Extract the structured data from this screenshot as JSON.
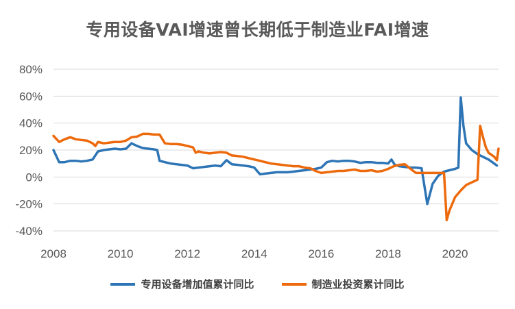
{
  "chart_data": {
    "type": "line",
    "title": "专用设备VAI增速曾长期低于制造业FAI增速",
    "xlabel": "",
    "ylabel": "",
    "xlim": [
      2008,
      2021.3
    ],
    "ylim": [
      -40,
      80
    ],
    "y_ticks": [
      "-40%",
      "-20%",
      "0%",
      "20%",
      "40%",
      "60%",
      "80%"
    ],
    "y_tick_values": [
      -40,
      -20,
      0,
      20,
      40,
      60,
      80
    ],
    "x_ticks": [
      "2008",
      "2010",
      "2012",
      "2014",
      "2016",
      "2018",
      "2020"
    ],
    "x_tick_values": [
      2008,
      2010,
      2012,
      2014,
      2016,
      2018,
      2020
    ],
    "grid": true,
    "legend_position": "bottom",
    "series": [
      {
        "name": "专用设备增加值累计同比",
        "color": "#2E75B6",
        "points": [
          [
            2008.0,
            20
          ],
          [
            2008.17,
            11
          ],
          [
            2008.33,
            11
          ],
          [
            2008.5,
            12
          ],
          [
            2008.67,
            12
          ],
          [
            2008.83,
            11.5
          ],
          [
            2009.0,
            12
          ],
          [
            2009.17,
            13
          ],
          [
            2009.33,
            19
          ],
          [
            2009.5,
            20
          ],
          [
            2009.67,
            20.5
          ],
          [
            2009.83,
            21
          ],
          [
            2010.0,
            20.5
          ],
          [
            2010.17,
            21
          ],
          [
            2010.33,
            25
          ],
          [
            2010.5,
            23
          ],
          [
            2010.67,
            21.5
          ],
          [
            2010.83,
            21
          ],
          [
            2011.0,
            20.5
          ],
          [
            2011.1,
            20
          ],
          [
            2011.17,
            12
          ],
          [
            2011.33,
            11
          ],
          [
            2011.5,
            10
          ],
          [
            2011.67,
            9.5
          ],
          [
            2011.83,
            9
          ],
          [
            2012.0,
            8.5
          ],
          [
            2012.17,
            6.5
          ],
          [
            2012.33,
            7
          ],
          [
            2012.5,
            7.5
          ],
          [
            2012.67,
            8
          ],
          [
            2012.83,
            8.5
          ],
          [
            2013.0,
            8
          ],
          [
            2013.17,
            12.5
          ],
          [
            2013.33,
            9.5
          ],
          [
            2013.5,
            9
          ],
          [
            2013.67,
            8.5
          ],
          [
            2013.83,
            8
          ],
          [
            2014.0,
            7
          ],
          [
            2014.17,
            2
          ],
          [
            2014.33,
            2.5
          ],
          [
            2014.5,
            3
          ],
          [
            2014.67,
            3.5
          ],
          [
            2014.83,
            3.5
          ],
          [
            2015.0,
            3.5
          ],
          [
            2015.17,
            4
          ],
          [
            2015.33,
            4.5
          ],
          [
            2015.5,
            5
          ],
          [
            2015.67,
            5.5
          ],
          [
            2015.83,
            6
          ],
          [
            2016.0,
            7
          ],
          [
            2016.17,
            11
          ],
          [
            2016.33,
            12
          ],
          [
            2016.5,
            11.5
          ],
          [
            2016.67,
            12
          ],
          [
            2016.83,
            12
          ],
          [
            2017.0,
            11.5
          ],
          [
            2017.17,
            10.5
          ],
          [
            2017.33,
            11
          ],
          [
            2017.5,
            11
          ],
          [
            2017.67,
            10.5
          ],
          [
            2017.83,
            10.5
          ],
          [
            2018.0,
            10
          ],
          [
            2018.1,
            13
          ],
          [
            2018.2,
            9
          ],
          [
            2018.33,
            8
          ],
          [
            2018.5,
            7.5
          ],
          [
            2018.67,
            7
          ],
          [
            2018.83,
            7
          ],
          [
            2019.0,
            6.5
          ],
          [
            2019.17,
            -20
          ],
          [
            2019.33,
            -5
          ],
          [
            2019.5,
            1
          ],
          [
            2019.67,
            4
          ],
          [
            2019.83,
            5
          ],
          [
            2020.0,
            6
          ],
          [
            2020.1,
            7
          ],
          [
            2020.17,
            59
          ],
          [
            2020.25,
            38
          ],
          [
            2020.33,
            25
          ],
          [
            2020.5,
            20
          ],
          [
            2020.67,
            17
          ],
          [
            2020.83,
            15
          ],
          [
            2021.0,
            13
          ],
          [
            2021.17,
            10
          ],
          [
            2021.25,
            8.5
          ]
        ]
      },
      {
        "name": "制造业投资累计同比",
        "color": "#ED6A0C",
        "points": [
          [
            2008.0,
            30.5
          ],
          [
            2008.17,
            26
          ],
          [
            2008.33,
            28
          ],
          [
            2008.5,
            29.5
          ],
          [
            2008.67,
            28
          ],
          [
            2008.83,
            27.5
          ],
          [
            2009.0,
            27
          ],
          [
            2009.17,
            25
          ],
          [
            2009.25,
            23
          ],
          [
            2009.33,
            26
          ],
          [
            2009.5,
            25
          ],
          [
            2009.67,
            25.5
          ],
          [
            2009.83,
            26
          ],
          [
            2010.0,
            26
          ],
          [
            2010.17,
            27
          ],
          [
            2010.33,
            29.5
          ],
          [
            2010.5,
            30
          ],
          [
            2010.67,
            32
          ],
          [
            2010.83,
            32
          ],
          [
            2011.0,
            31.5
          ],
          [
            2011.17,
            31.5
          ],
          [
            2011.33,
            25
          ],
          [
            2011.5,
            24.5
          ],
          [
            2011.67,
            24.5
          ],
          [
            2011.83,
            24
          ],
          [
            2012.0,
            23
          ],
          [
            2012.17,
            22
          ],
          [
            2012.25,
            18
          ],
          [
            2012.33,
            19
          ],
          [
            2012.5,
            18
          ],
          [
            2012.67,
            17.5
          ],
          [
            2012.83,
            18
          ],
          [
            2013.0,
            18.5
          ],
          [
            2013.17,
            18
          ],
          [
            2013.33,
            16
          ],
          [
            2013.5,
            15.5
          ],
          [
            2013.67,
            15
          ],
          [
            2013.83,
            14
          ],
          [
            2014.0,
            13
          ],
          [
            2014.17,
            12
          ],
          [
            2014.33,
            11
          ],
          [
            2014.5,
            10
          ],
          [
            2014.67,
            9.5
          ],
          [
            2014.83,
            9
          ],
          [
            2015.0,
            8.5
          ],
          [
            2015.17,
            8
          ],
          [
            2015.33,
            8
          ],
          [
            2015.5,
            7
          ],
          [
            2015.67,
            6.5
          ],
          [
            2015.83,
            4.5
          ],
          [
            2016.0,
            3
          ],
          [
            2016.17,
            3.5
          ],
          [
            2016.33,
            4
          ],
          [
            2016.5,
            4.5
          ],
          [
            2016.67,
            4.5
          ],
          [
            2016.83,
            5
          ],
          [
            2017.0,
            5.5
          ],
          [
            2017.17,
            4.5
          ],
          [
            2017.33,
            4.5
          ],
          [
            2017.5,
            5
          ],
          [
            2017.67,
            4
          ],
          [
            2017.83,
            4.5
          ],
          [
            2018.0,
            6
          ],
          [
            2018.17,
            8
          ],
          [
            2018.33,
            9
          ],
          [
            2018.5,
            9.5
          ],
          [
            2018.67,
            6
          ],
          [
            2018.83,
            3
          ],
          [
            2019.0,
            3
          ],
          [
            2019.17,
            3
          ],
          [
            2019.33,
            3
          ],
          [
            2019.5,
            3
          ],
          [
            2019.67,
            3
          ],
          [
            2019.75,
            -32
          ],
          [
            2019.83,
            -25
          ],
          [
            2020.0,
            -15
          ],
          [
            2020.17,
            -10
          ],
          [
            2020.33,
            -6
          ],
          [
            2020.5,
            -4
          ],
          [
            2020.67,
            -2
          ],
          [
            2020.75,
            38
          ],
          [
            2020.83,
            30
          ],
          [
            2020.92,
            22
          ],
          [
            2021.0,
            18
          ],
          [
            2021.17,
            15
          ],
          [
            2021.25,
            12.5
          ],
          [
            2021.3,
            21
          ]
        ]
      }
    ]
  }
}
